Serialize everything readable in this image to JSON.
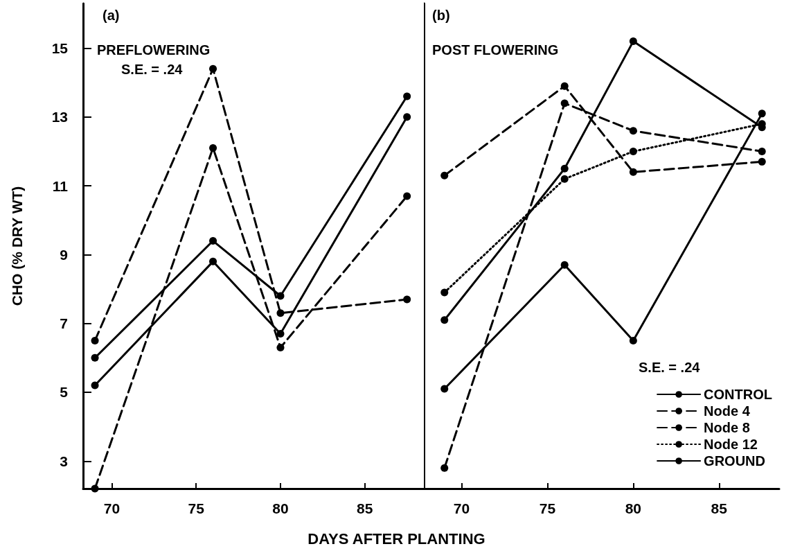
{
  "chart_data": [
    {
      "type": "line",
      "ylabel": "CHO (% DRY WT)",
      "xlabel": "DAYS AFTER PLANTING",
      "annotations": [
        "(a)",
        "PREFLOWERING",
        "S.E. = .24"
      ],
      "x": [
        69,
        76,
        80,
        87.5
      ],
      "xlim": [
        68.3,
        88.5
      ],
      "xticks": [
        70,
        75,
        80,
        85
      ],
      "ylim": [
        2.2,
        16.3
      ],
      "yticks": [
        3,
        5,
        7,
        9,
        11,
        13,
        15
      ],
      "grid": false,
      "legend": false,
      "marker": "circle",
      "series": [
        {
          "color": "#000000",
          "line_style": "solid",
          "values": [
            5.2,
            8.8,
            6.7,
            13.0
          ]
        },
        {
          "color": "#000000",
          "line_style": "dashed",
          "values": [
            2.2,
            12.1,
            6.3,
            10.7
          ]
        },
        {
          "color": "#000000",
          "line_style": "dashed",
          "values": [
            6.5,
            14.4,
            7.3,
            7.7
          ]
        },
        {
          "color": "#000000",
          "line_style": "solid",
          "values": [
            6.0,
            9.4,
            7.8,
            13.6
          ]
        }
      ]
    },
    {
      "type": "line",
      "annotations": [
        "(b)",
        "POST FLOWERING",
        "S.E. = .24"
      ],
      "x": [
        69,
        76,
        80,
        87.5
      ],
      "xlim": [
        67.8,
        88.5
      ],
      "xticks": [
        70,
        75,
        80,
        85
      ],
      "ylim": [
        2.2,
        16.3
      ],
      "tick_labels": "x",
      "grid": false,
      "legend": "bottom right",
      "marker": "circle",
      "series": [
        {
          "name": "CONTROL",
          "color": "#000000",
          "line_style": "solid",
          "values": [
            5.1,
            8.7,
            6.5,
            13.1
          ]
        },
        {
          "name": "Node 4",
          "color": "#000000",
          "line_style": "dashed",
          "values": [
            11.3,
            13.9,
            11.4,
            11.7
          ]
        },
        {
          "name": "Node 8",
          "color": "#000000",
          "line_style": "dashed",
          "values": [
            2.8,
            13.4,
            12.6,
            12.0
          ]
        },
        {
          "name": "Node 12",
          "color": "#000000",
          "line_style": "dotted",
          "values": [
            7.9,
            11.2,
            12.0,
            12.8
          ]
        },
        {
          "name": "GROUND",
          "color": "#000000",
          "line_style": "solid",
          "values": [
            7.1,
            11.5,
            15.2,
            12.7
          ]
        }
      ]
    }
  ]
}
